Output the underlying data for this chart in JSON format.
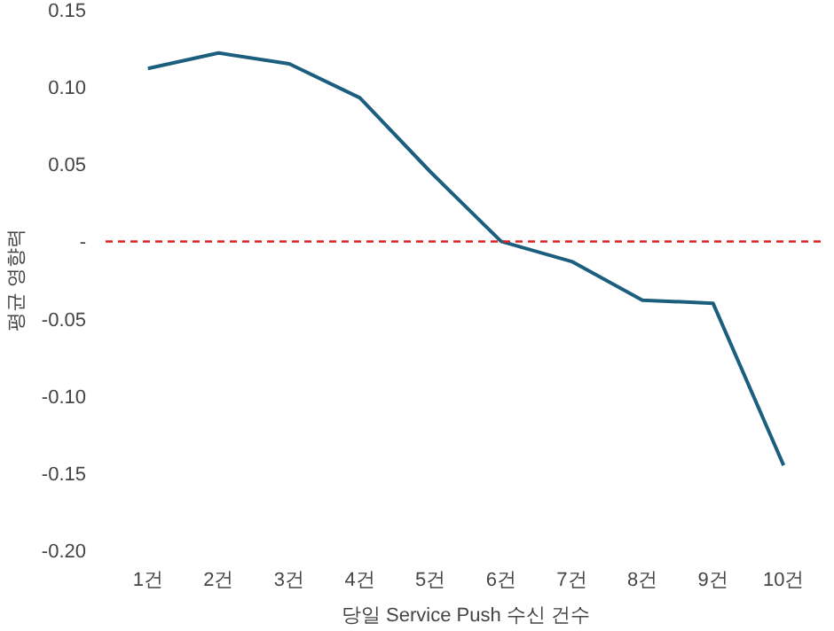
{
  "chart_data": {
    "type": "line",
    "xlabel": "당일 Service Push 수신 건수",
    "ylabel": "평균 영향력",
    "categories": [
      "1건",
      "2건",
      "3건",
      "4건",
      "5건",
      "6건",
      "7건",
      "8건",
      "9건",
      "10건"
    ],
    "series": [
      {
        "color": "#1b5e7e",
        "values": [
          0.112,
          0.122,
          0.115,
          0.093,
          0.045,
          0.0,
          -0.013,
          -0.038,
          -0.04,
          -0.145
        ]
      }
    ],
    "ylim": [
      -0.2,
      0.15
    ],
    "yticks": [
      {
        "value": -0.2,
        "label": "-0.20"
      },
      -0.15,
      {
        "value": -0.1,
        "label": "-0.10"
      },
      -0.05,
      {
        "value": 0,
        "label": "-"
      },
      0.05,
      {
        "value": 0.1,
        "label": "0.10"
      },
      0.15
    ],
    "ref_lines": [
      {
        "axis": "y",
        "value": 0,
        "color": "#e02020",
        "line_style": "dashed"
      }
    ],
    "grid": false,
    "marker": "none",
    "line_style": "solid"
  }
}
